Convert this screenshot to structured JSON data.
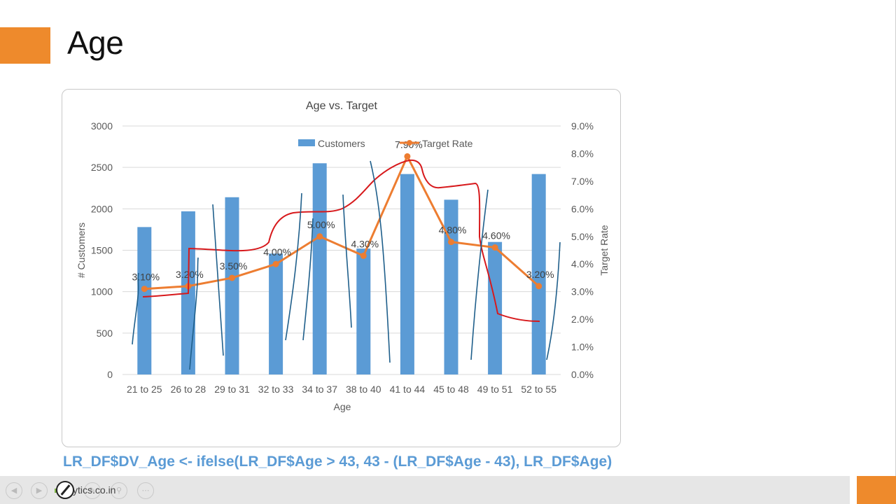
{
  "slide": {
    "title": "Age",
    "code": "LR_DF$DV_Age <- ifelse(LR_DF$Age > 43, 43 - (LR_DF$Age - 43), LR_DF$Age)"
  },
  "footer": {
    "site": "lalytics.co.in"
  },
  "colors": {
    "accent": "#ee8a2c",
    "bar": "#5b9bd5",
    "line": "#ed7d31",
    "ink_red": "#d7191c",
    "ink_blue": "#1f5f8b"
  },
  "chart_data": {
    "type": "bar",
    "title": "Age vs. Target",
    "xlabel": "Age",
    "ylabel": "# Customers",
    "y2label": "Target Rate",
    "categories": [
      "21 to 25",
      "26 to 28",
      "29 to 31",
      "32 to 33",
      "34 to 37",
      "38 to 40",
      "41 to 44",
      "45 to 48",
      "49 to 51",
      "52 to 55"
    ],
    "series": [
      {
        "name": "Customers",
        "type": "bar",
        "axis": "left",
        "values": [
          1780,
          1970,
          2140,
          1460,
          2550,
          1520,
          2420,
          2110,
          1600,
          2420
        ]
      },
      {
        "name": "Target Rate",
        "type": "line",
        "axis": "right",
        "values": [
          3.1,
          3.2,
          3.5,
          4.0,
          5.0,
          4.3,
          7.9,
          4.8,
          4.6,
          3.2
        ],
        "labels": [
          "3.10%",
          "3.20%",
          "3.50%",
          "4.00%",
          "5.00%",
          "4.30%",
          "7.90%",
          "4.80%",
          "4.60%",
          "3.20%"
        ]
      }
    ],
    "ylim": [
      0,
      3000
    ],
    "y2lim": [
      0,
      9
    ],
    "yticks": [
      "0",
      "500",
      "1000",
      "1500",
      "2000",
      "2500",
      "3000"
    ],
    "y2ticks": [
      "0.0%",
      "1.0%",
      "2.0%",
      "3.0%",
      "4.0%",
      "5.0%",
      "6.0%",
      "7.0%",
      "8.0%",
      "9.0%"
    ],
    "legend": {
      "position": "top",
      "items": [
        "Customers",
        "Target Rate"
      ]
    },
    "grid": true
  }
}
